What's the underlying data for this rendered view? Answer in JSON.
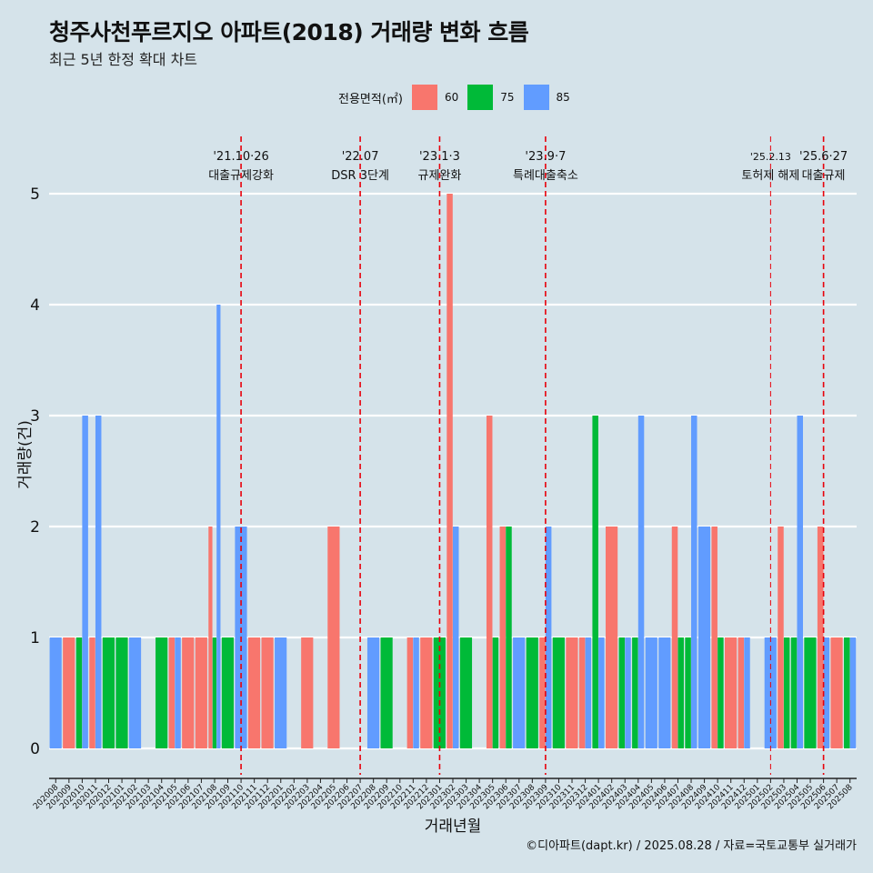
{
  "title": "청주사천푸르지오 아파트(2018) 거래량 변화 흐름",
  "subtitle": "최근 5년 한정 확대 차트",
  "caption": "©디아파트(dapt.kr) / 2025.08.28 / 자료=국토교통부 실거래가",
  "legend": {
    "title": "전용면적(㎡)",
    "items": [
      {
        "label": "60",
        "color": "#f8766d"
      },
      {
        "label": "75",
        "color": "#00ba38"
      },
      {
        "label": "85",
        "color": "#619cff"
      }
    ]
  },
  "chart_data": {
    "type": "bar",
    "xlabel": "거래년월",
    "ylabel": "거래량(건)",
    "ylim": [
      0,
      5
    ],
    "yticks": [
      "0",
      "1",
      "2",
      "3",
      "4",
      "5"
    ],
    "categories": [
      "202008",
      "202009",
      "202010",
      "202011",
      "202012",
      "202101",
      "202102",
      "202103",
      "202104",
      "202105",
      "202106",
      "202107",
      "202108",
      "202109",
      "202110",
      "202111",
      "202112",
      "202201",
      "202202",
      "202203",
      "202204",
      "202205",
      "202206",
      "202207",
      "202208",
      "202209",
      "202210",
      "202211",
      "202212",
      "202301",
      "202302",
      "202303",
      "202304",
      "202305",
      "202306",
      "202307",
      "202308",
      "202309",
      "202310",
      "202311",
      "202312",
      "202401",
      "202402",
      "202403",
      "202404",
      "202405",
      "202406",
      "202407",
      "202408",
      "202409",
      "202410",
      "202411",
      "202412",
      "202501",
      "202502",
      "202503",
      "202504",
      "202505",
      "202506",
      "202507",
      "202508"
    ],
    "series": [
      {
        "name": "60",
        "color": "#f8766d",
        "values": [
          0,
          1,
          0,
          1,
          0,
          0,
          0,
          0,
          0,
          1,
          1,
          1,
          2,
          0,
          0,
          1,
          1,
          0,
          0,
          1,
          0,
          2,
          0,
          0,
          0,
          0,
          0,
          1,
          1,
          0,
          5,
          0,
          0,
          3,
          2,
          0,
          0,
          1,
          0,
          1,
          1,
          0,
          2,
          0,
          0,
          0,
          0,
          2,
          0,
          0,
          2,
          1,
          1,
          0,
          0,
          2,
          0,
          0,
          2,
          1,
          0
        ]
      },
      {
        "name": "75",
        "color": "#00ba38",
        "values": [
          0,
          0,
          1,
          0,
          1,
          1,
          0,
          0,
          1,
          0,
          0,
          0,
          1,
          1,
          0,
          0,
          0,
          0,
          0,
          0,
          0,
          0,
          0,
          0,
          0,
          1,
          0,
          0,
          0,
          1,
          0,
          1,
          0,
          1,
          2,
          0,
          1,
          0,
          1,
          0,
          0,
          3,
          0,
          1,
          1,
          0,
          0,
          1,
          1,
          0,
          1,
          0,
          0,
          0,
          0,
          1,
          1,
          1,
          0,
          0,
          1
        ]
      },
      {
        "name": "85",
        "color": "#619cff",
        "values": [
          1,
          0,
          3,
          3,
          0,
          0,
          1,
          0,
          0,
          1,
          0,
          0,
          4,
          0,
          2,
          0,
          0,
          1,
          0,
          0,
          0,
          0,
          0,
          0,
          1,
          0,
          0,
          1,
          0,
          0,
          2,
          0,
          0,
          0,
          0,
          1,
          0,
          2,
          0,
          0,
          1,
          1,
          0,
          1,
          3,
          1,
          1,
          0,
          3,
          2,
          0,
          0,
          1,
          0,
          1,
          0,
          3,
          0,
          1,
          0,
          1
        ]
      }
    ],
    "events": [
      {
        "date": "'21.10·26",
        "label": "대출규제강화",
        "month": "202110"
      },
      {
        "date": "'22.07",
        "label": "DSR 3단계",
        "month": "202207"
      },
      {
        "date": "'23.1·3",
        "label": "규제완화",
        "month": "202301"
      },
      {
        "date": "'23.9·7",
        "label": "특례대출축소",
        "month": "202309"
      },
      {
        "date": "'25.2.13",
        "label": "토허제 해제",
        "month": "202502"
      },
      {
        "date": "'25.6·27",
        "label": "대출규제",
        "month": "202506"
      }
    ],
    "grid": true,
    "legend_position": "top"
  }
}
